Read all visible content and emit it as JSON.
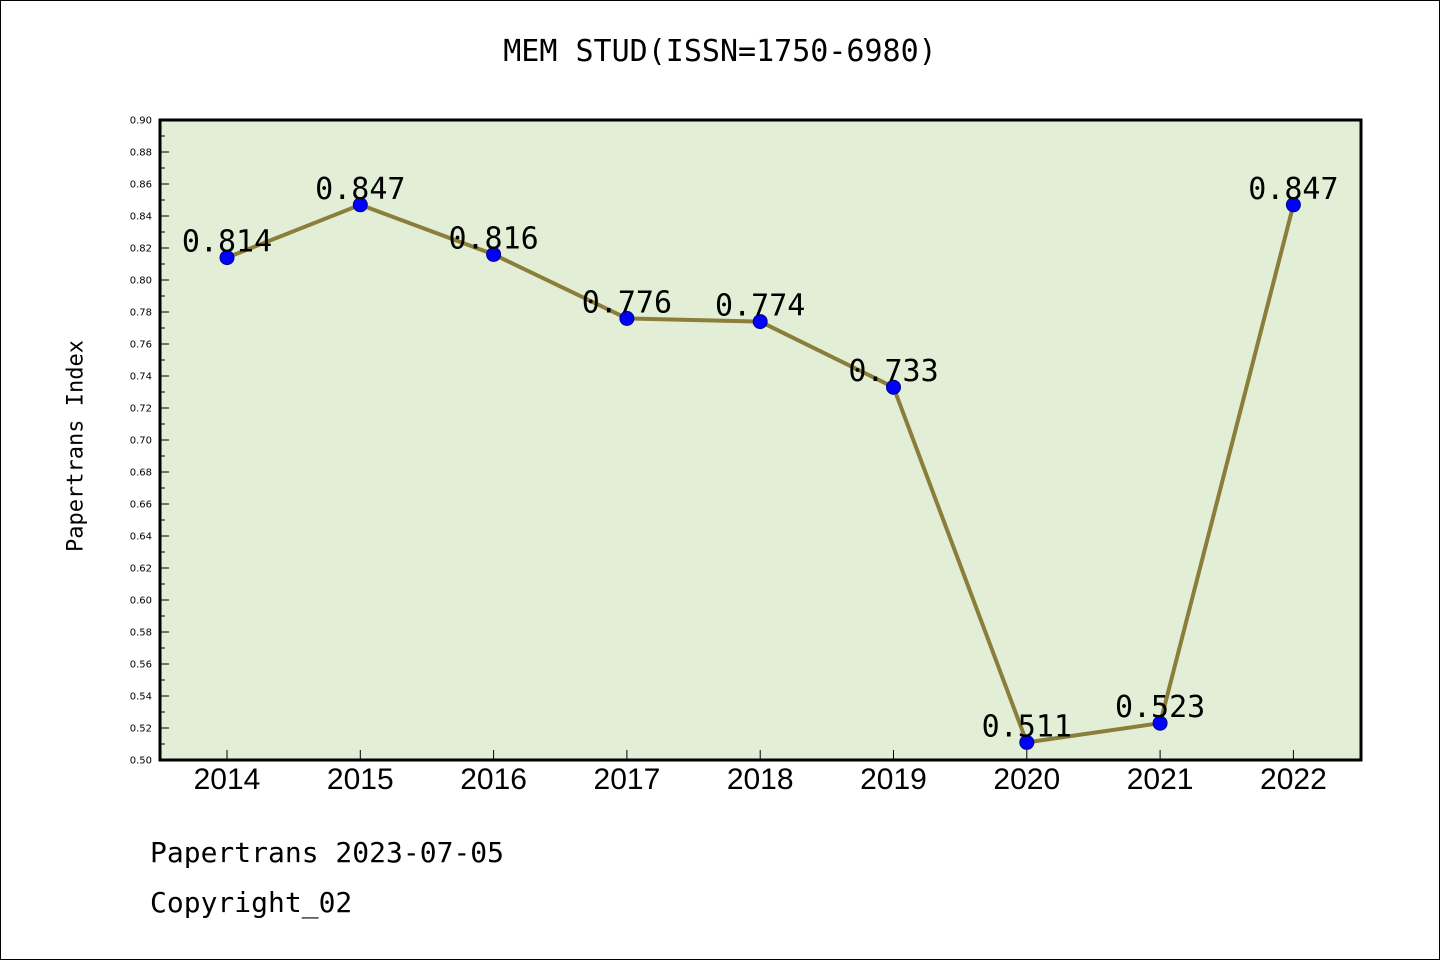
{
  "chart_data": {
    "type": "line",
    "title": "MEM STUD(ISSN=1750-6980)",
    "ylabel": "Papertrans Index",
    "xlabel": "",
    "categories": [
      "2014",
      "2015",
      "2016",
      "2017",
      "2018",
      "2019",
      "2020",
      "2021",
      "2022"
    ],
    "values": [
      0.814,
      0.847,
      0.816,
      0.776,
      0.774,
      0.733,
      0.511,
      0.523,
      0.847
    ],
    "data_labels": [
      "0.814",
      "0.847",
      "0.816",
      "0.776",
      "0.774",
      "0.733",
      "0.511",
      "0.523",
      "0.847"
    ],
    "ylim": [
      0.5,
      0.9
    ],
    "yticks": [
      "0.50",
      "0.52",
      "0.54",
      "0.56",
      "0.58",
      "0.60",
      "0.62",
      "0.64",
      "0.66",
      "0.68",
      "0.70",
      "0.72",
      "0.74",
      "0.76",
      "0.78",
      "0.80",
      "0.82",
      "0.84",
      "0.86",
      "0.88",
      "0.90"
    ],
    "grid": false,
    "colors": {
      "plot_background": "#e2efd6",
      "line": "#8b7d3a",
      "marker": "#0000ff"
    }
  },
  "footer": {
    "line1": "Papertrans 2023-07-05",
    "line2": "Copyright_02"
  }
}
